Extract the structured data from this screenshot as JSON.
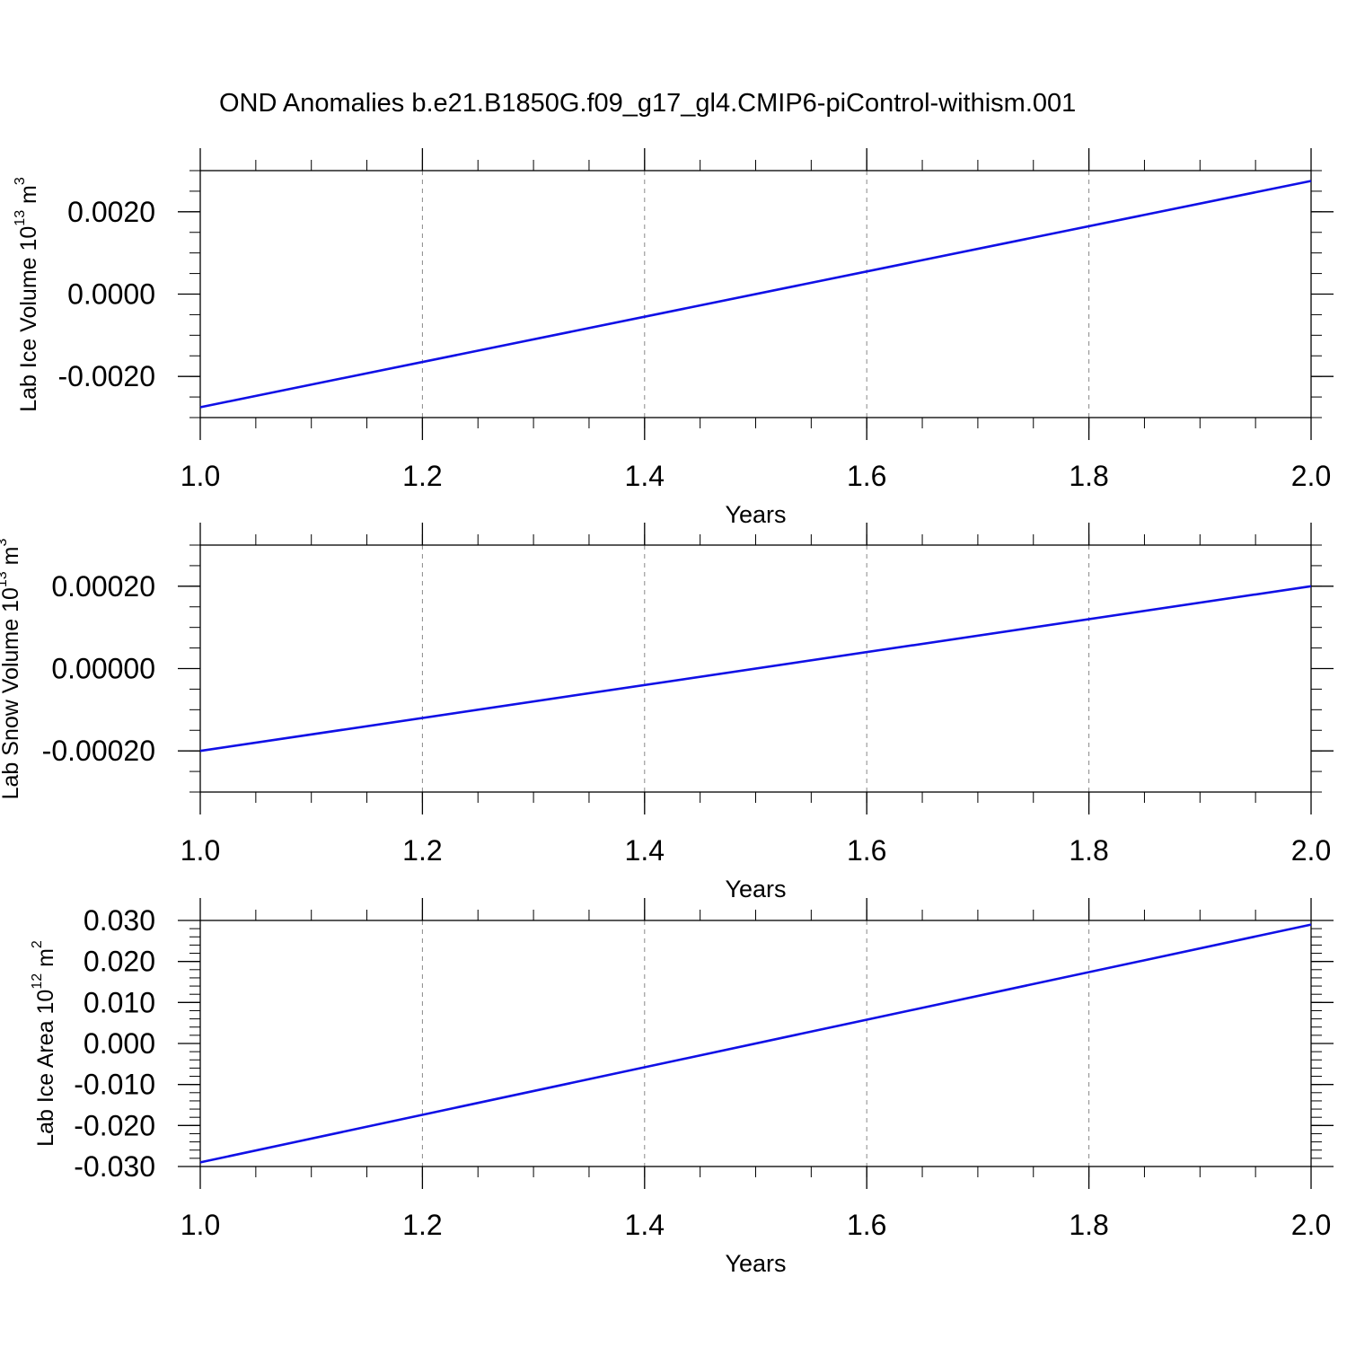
{
  "title": "OND Anomalies b.e21.B1850G.f09_g17_gl4.CMIP6-piControl-withism.001",
  "line_color": "#1010e6",
  "chart_data": [
    {
      "type": "line",
      "xlabel": "Years",
      "ylabel": {
        "text": "Lab Ice Volume 10",
        "exp": "13",
        "unit": "m",
        "unit_exp": "3"
      },
      "xlim": [
        1.0,
        2.0
      ],
      "ylim": [
        -0.003,
        0.003
      ],
      "x_ticks": [
        1.0,
        1.2,
        1.4,
        1.6,
        1.8,
        2.0
      ],
      "x_tick_labels": [
        "1.0",
        "1.2",
        "1.4",
        "1.6",
        "1.8",
        "2.0"
      ],
      "y_ticks": [
        -0.002,
        0.0,
        0.002
      ],
      "y_tick_labels": [
        "-0.0020",
        "0.0000",
        "0.0020"
      ],
      "y_minor_step": 0.0005,
      "grid": "vertical dashed",
      "series": [
        {
          "x": [
            1.0,
            2.0
          ],
          "y": [
            -0.00275,
            0.00275
          ]
        }
      ]
    },
    {
      "type": "line",
      "xlabel": "Years",
      "ylabel": {
        "text": "Lab Snow Volume 10",
        "exp": "13",
        "unit": "m",
        "unit_exp": "3"
      },
      "xlim": [
        1.0,
        2.0
      ],
      "ylim": [
        -0.0003,
        0.0003
      ],
      "x_ticks": [
        1.0,
        1.2,
        1.4,
        1.6,
        1.8,
        2.0
      ],
      "x_tick_labels": [
        "1.0",
        "1.2",
        "1.4",
        "1.6",
        "1.8",
        "2.0"
      ],
      "y_ticks": [
        -0.0002,
        0.0,
        0.0002
      ],
      "y_tick_labels": [
        "-0.00020",
        "0.00000",
        "0.00020"
      ],
      "y_minor_step": 5e-05,
      "grid": "vertical dashed",
      "series": [
        {
          "x": [
            1.0,
            2.0
          ],
          "y": [
            -0.0002,
            0.0002
          ]
        }
      ]
    },
    {
      "type": "line",
      "xlabel": "Years",
      "ylabel": {
        "text": "Lab Ice Area 10",
        "exp": "12",
        "unit": "m",
        "unit_exp": "2"
      },
      "xlim": [
        1.0,
        2.0
      ],
      "ylim": [
        -0.03,
        0.03
      ],
      "x_ticks": [
        1.0,
        1.2,
        1.4,
        1.6,
        1.8,
        2.0
      ],
      "x_tick_labels": [
        "1.0",
        "1.2",
        "1.4",
        "1.6",
        "1.8",
        "2.0"
      ],
      "y_ticks": [
        -0.03,
        -0.02,
        -0.01,
        0.0,
        0.01,
        0.02,
        0.03
      ],
      "y_tick_labels": [
        "-0.030",
        "-0.020",
        "-0.010",
        "0.000",
        "0.010",
        "0.020",
        "0.030"
      ],
      "y_minor_step": 0.002,
      "grid": "vertical dashed",
      "series": [
        {
          "x": [
            1.0,
            2.0
          ],
          "y": [
            -0.029,
            0.029
          ]
        }
      ]
    }
  ]
}
